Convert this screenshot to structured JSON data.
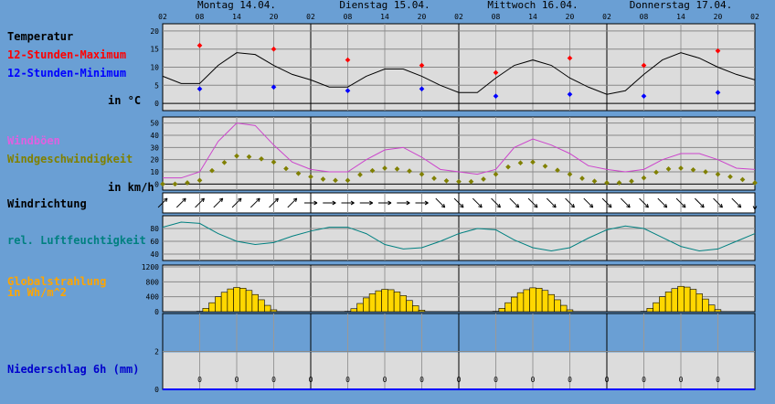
{
  "days": [
    "Montag 14.04.",
    "Dienstag 15.04.",
    "Mittwoch 16.04.",
    "Donnerstag 17.04."
  ],
  "hour_ticks": [
    "02",
    "08",
    "14",
    "20",
    "02",
    "08",
    "14",
    "20",
    "02",
    "08",
    "14",
    "20",
    "02",
    "08",
    "14",
    "20",
    "02"
  ],
  "chart_data": [
    {
      "type": "line",
      "title": "Temperatur",
      "unit": "in °C",
      "legend": [
        "12-Stunden-Maximum",
        "12-Stunden-Minimum"
      ],
      "yticks": [
        0,
        5,
        10,
        15,
        20
      ],
      "ylim": [
        -2,
        22
      ],
      "x_hours": [
        0,
        3,
        6,
        9,
        12,
        15,
        18,
        21,
        24,
        27,
        30,
        33,
        36,
        39,
        42,
        45,
        48,
        51,
        54,
        57,
        60,
        63,
        66,
        69,
        72,
        75,
        78,
        81,
        84,
        87,
        90,
        93,
        96
      ],
      "temperature": [
        7.5,
        5.5,
        5.5,
        10.5,
        14,
        13.5,
        10.5,
        8,
        6.5,
        4.5,
        4.5,
        7.5,
        9.5,
        9.5,
        7.5,
        5,
        3,
        3,
        7,
        10.5,
        12,
        10.5,
        7,
        4.5,
        2.5,
        3.5,
        8,
        12,
        14,
        12.5,
        10,
        8,
        6.5
      ],
      "max": [
        {
          "h": 6,
          "v": 16
        },
        {
          "h": 18,
          "v": 15
        },
        {
          "h": 30,
          "v": 12
        },
        {
          "h": 42,
          "v": 10.5
        },
        {
          "h": 54,
          "v": 8.5
        },
        {
          "h": 66,
          "v": 12.5
        },
        {
          "h": 78,
          "v": 10.5
        },
        {
          "h": 90,
          "v": 14.5
        }
      ],
      "min": [
        {
          "h": 6,
          "v": 4
        },
        {
          "h": 18,
          "v": 4.5
        },
        {
          "h": 30,
          "v": 3.5
        },
        {
          "h": 42,
          "v": 4
        },
        {
          "h": 54,
          "v": 2
        },
        {
          "h": 66,
          "v": 2.5
        },
        {
          "h": 78,
          "v": 2
        },
        {
          "h": 90,
          "v": 3
        }
      ],
      "colors": {
        "line": "#000000",
        "max": "#ff0000",
        "min": "#0000ff"
      }
    },
    {
      "type": "line",
      "legend": [
        "Windböen",
        "Windgeschwindigkeit"
      ],
      "unit": "in km/h",
      "yticks": [
        0,
        10,
        20,
        30,
        40,
        50
      ],
      "ylim": [
        -5,
        55
      ],
      "x_hours": [
        0,
        3,
        6,
        9,
        12,
        15,
        18,
        21,
        24,
        27,
        30,
        33,
        36,
        39,
        42,
        45,
        48,
        51,
        54,
        57,
        60,
        63,
        66,
        69,
        72,
        75,
        78,
        81,
        84,
        87,
        90,
        93,
        96
      ],
      "gusts": [
        5,
        5,
        10,
        35,
        50,
        48,
        32,
        18,
        12,
        10,
        10,
        20,
        28,
        30,
        22,
        12,
        10,
        8,
        12,
        30,
        37,
        32,
        25,
        15,
        12,
        10,
        12,
        20,
        25,
        25,
        20,
        13,
        12
      ],
      "speed": [
        0,
        0,
        3,
        15,
        23,
        22,
        18,
        10,
        6,
        3,
        3,
        10,
        13,
        12,
        8,
        3,
        2,
        2,
        8,
        17,
        18,
        13,
        8,
        3,
        1,
        1,
        5,
        12,
        13,
        11,
        8,
        5,
        1
      ],
      "colors": {
        "gusts": "#cc44cc",
        "speed": "#808000"
      }
    },
    {
      "type": "table",
      "title": "Windrichtung",
      "directions": [
        "SW",
        "SW",
        "SW",
        "SW",
        "SW",
        "SW",
        "SW",
        "SW",
        "W",
        "W",
        "W",
        "W",
        "W",
        "W",
        "W",
        "NW",
        "NW",
        "NW",
        "NW",
        "NW",
        "NW",
        "NW",
        "NW",
        "NW",
        "NW",
        "NW",
        "NW",
        "NW",
        "NW",
        "NW",
        "NW",
        "NW",
        "N"
      ]
    },
    {
      "type": "line",
      "title": "rel. Luftfeuchtigkeit",
      "yticks": [
        40,
        60,
        80
      ],
      "ylim": [
        30,
        100
      ],
      "x_hours": [
        0,
        3,
        6,
        9,
        12,
        15,
        18,
        21,
        24,
        27,
        30,
        33,
        36,
        39,
        42,
        45,
        48,
        51,
        54,
        57,
        60,
        63,
        66,
        69,
        72,
        75,
        78,
        81,
        84,
        87,
        90,
        93,
        96
      ],
      "humidity": [
        82,
        90,
        88,
        72,
        60,
        55,
        58,
        68,
        76,
        82,
        82,
        72,
        55,
        48,
        50,
        60,
        72,
        80,
        78,
        62,
        50,
        45,
        50,
        65,
        78,
        84,
        80,
        66,
        52,
        45,
        48,
        60,
        72
      ],
      "colors": {
        "line": "#008080"
      }
    },
    {
      "type": "bar",
      "title": "Globalstrahlung in Wh/m^2",
      "yticks": [
        0,
        400,
        800,
        1200
      ],
      "ylim": [
        0,
        1250
      ],
      "x_hours": [
        0,
        1,
        2,
        3,
        4,
        5,
        6,
        7,
        8,
        9,
        10,
        11,
        12,
        13,
        14,
        15,
        16,
        17,
        18,
        19,
        20,
        21,
        22,
        23,
        24,
        25,
        26,
        27,
        28,
        29,
        30,
        31,
        32,
        33,
        34,
        35,
        36,
        37,
        38,
        39,
        40,
        41,
        42,
        43,
        44,
        45,
        46,
        47,
        48,
        49,
        50,
        51,
        52,
        53,
        54,
        55,
        56,
        57,
        58,
        59,
        60,
        61,
        62,
        63,
        64,
        65,
        66,
        67,
        68,
        69,
        70,
        71,
        72,
        73,
        74,
        75,
        76,
        77,
        78,
        79,
        80,
        81,
        82,
        83,
        84,
        85,
        86,
        87,
        88,
        89,
        90,
        91,
        92,
        93,
        94,
        95,
        96
      ],
      "radiation": [
        0,
        0,
        0,
        0,
        0,
        0,
        10,
        90,
        240,
        400,
        520,
        610,
        650,
        630,
        570,
        460,
        320,
        170,
        50,
        5,
        0,
        0,
        0,
        0,
        0,
        0,
        0,
        0,
        0,
        0,
        10,
        80,
        220,
        370,
        480,
        560,
        600,
        590,
        530,
        430,
        300,
        160,
        40,
        5,
        0,
        0,
        0,
        0,
        0,
        0,
        0,
        0,
        0,
        0,
        10,
        90,
        240,
        390,
        510,
        590,
        640,
        630,
        570,
        460,
        320,
        170,
        50,
        5,
        0,
        0,
        0,
        0,
        0,
        0,
        0,
        0,
        0,
        0,
        10,
        90,
        240,
        400,
        530,
        620,
        680,
        660,
        600,
        480,
        340,
        180,
        55,
        5,
        0,
        0,
        0,
        0,
        0
      ],
      "colors": {
        "bars": "#ffd700"
      }
    },
    {
      "type": "bar",
      "title": "Niederschlag 6h (mm)",
      "yticks": [
        0,
        2
      ],
      "ylim": [
        0,
        4
      ],
      "x_hours": [
        6,
        12,
        18,
        24,
        30,
        36,
        42,
        48,
        54,
        60,
        66,
        72,
        78,
        84,
        90
      ],
      "precipitation": [
        0,
        0,
        0,
        0,
        0,
        0,
        0,
        0,
        0,
        0,
        0,
        0,
        0,
        0,
        0
      ],
      "value_labels": [
        "0",
        "0",
        "0",
        "0",
        "0",
        "0",
        "0",
        "0",
        "0",
        "0",
        "0",
        "0",
        "0",
        "0",
        "0"
      ],
      "colors": {
        "label": "#0000aa"
      }
    }
  ],
  "labels": {
    "temp_title": "Temperatur",
    "temp_max": "12-Stunden-Maximum",
    "temp_min": "12-Stunden-Minimum",
    "temp_unit": "in °C",
    "wind_gusts": "Windböen",
    "wind_speed": "Windgeschwindigkeit",
    "wind_unit": "in km/h",
    "wind_dir": "Windrichtung",
    "humidity": "rel. Luftfeuchtigkeit",
    "radiation_1": "Globalstrahlung",
    "radiation_2": "in Wh/m^2",
    "precip": "Niederschlag 6h (mm)"
  },
  "colors": {
    "background": "#6a9fd4",
    "panel": "#dcdcdc",
    "label_black": "#000000",
    "label_red": "#ff0000",
    "label_blue": "#0000ff",
    "label_pink": "#e060e0",
    "label_olive": "#808000",
    "label_teal": "#008080",
    "label_orange": "#ffa500",
    "label_navy": "#0000cc"
  }
}
